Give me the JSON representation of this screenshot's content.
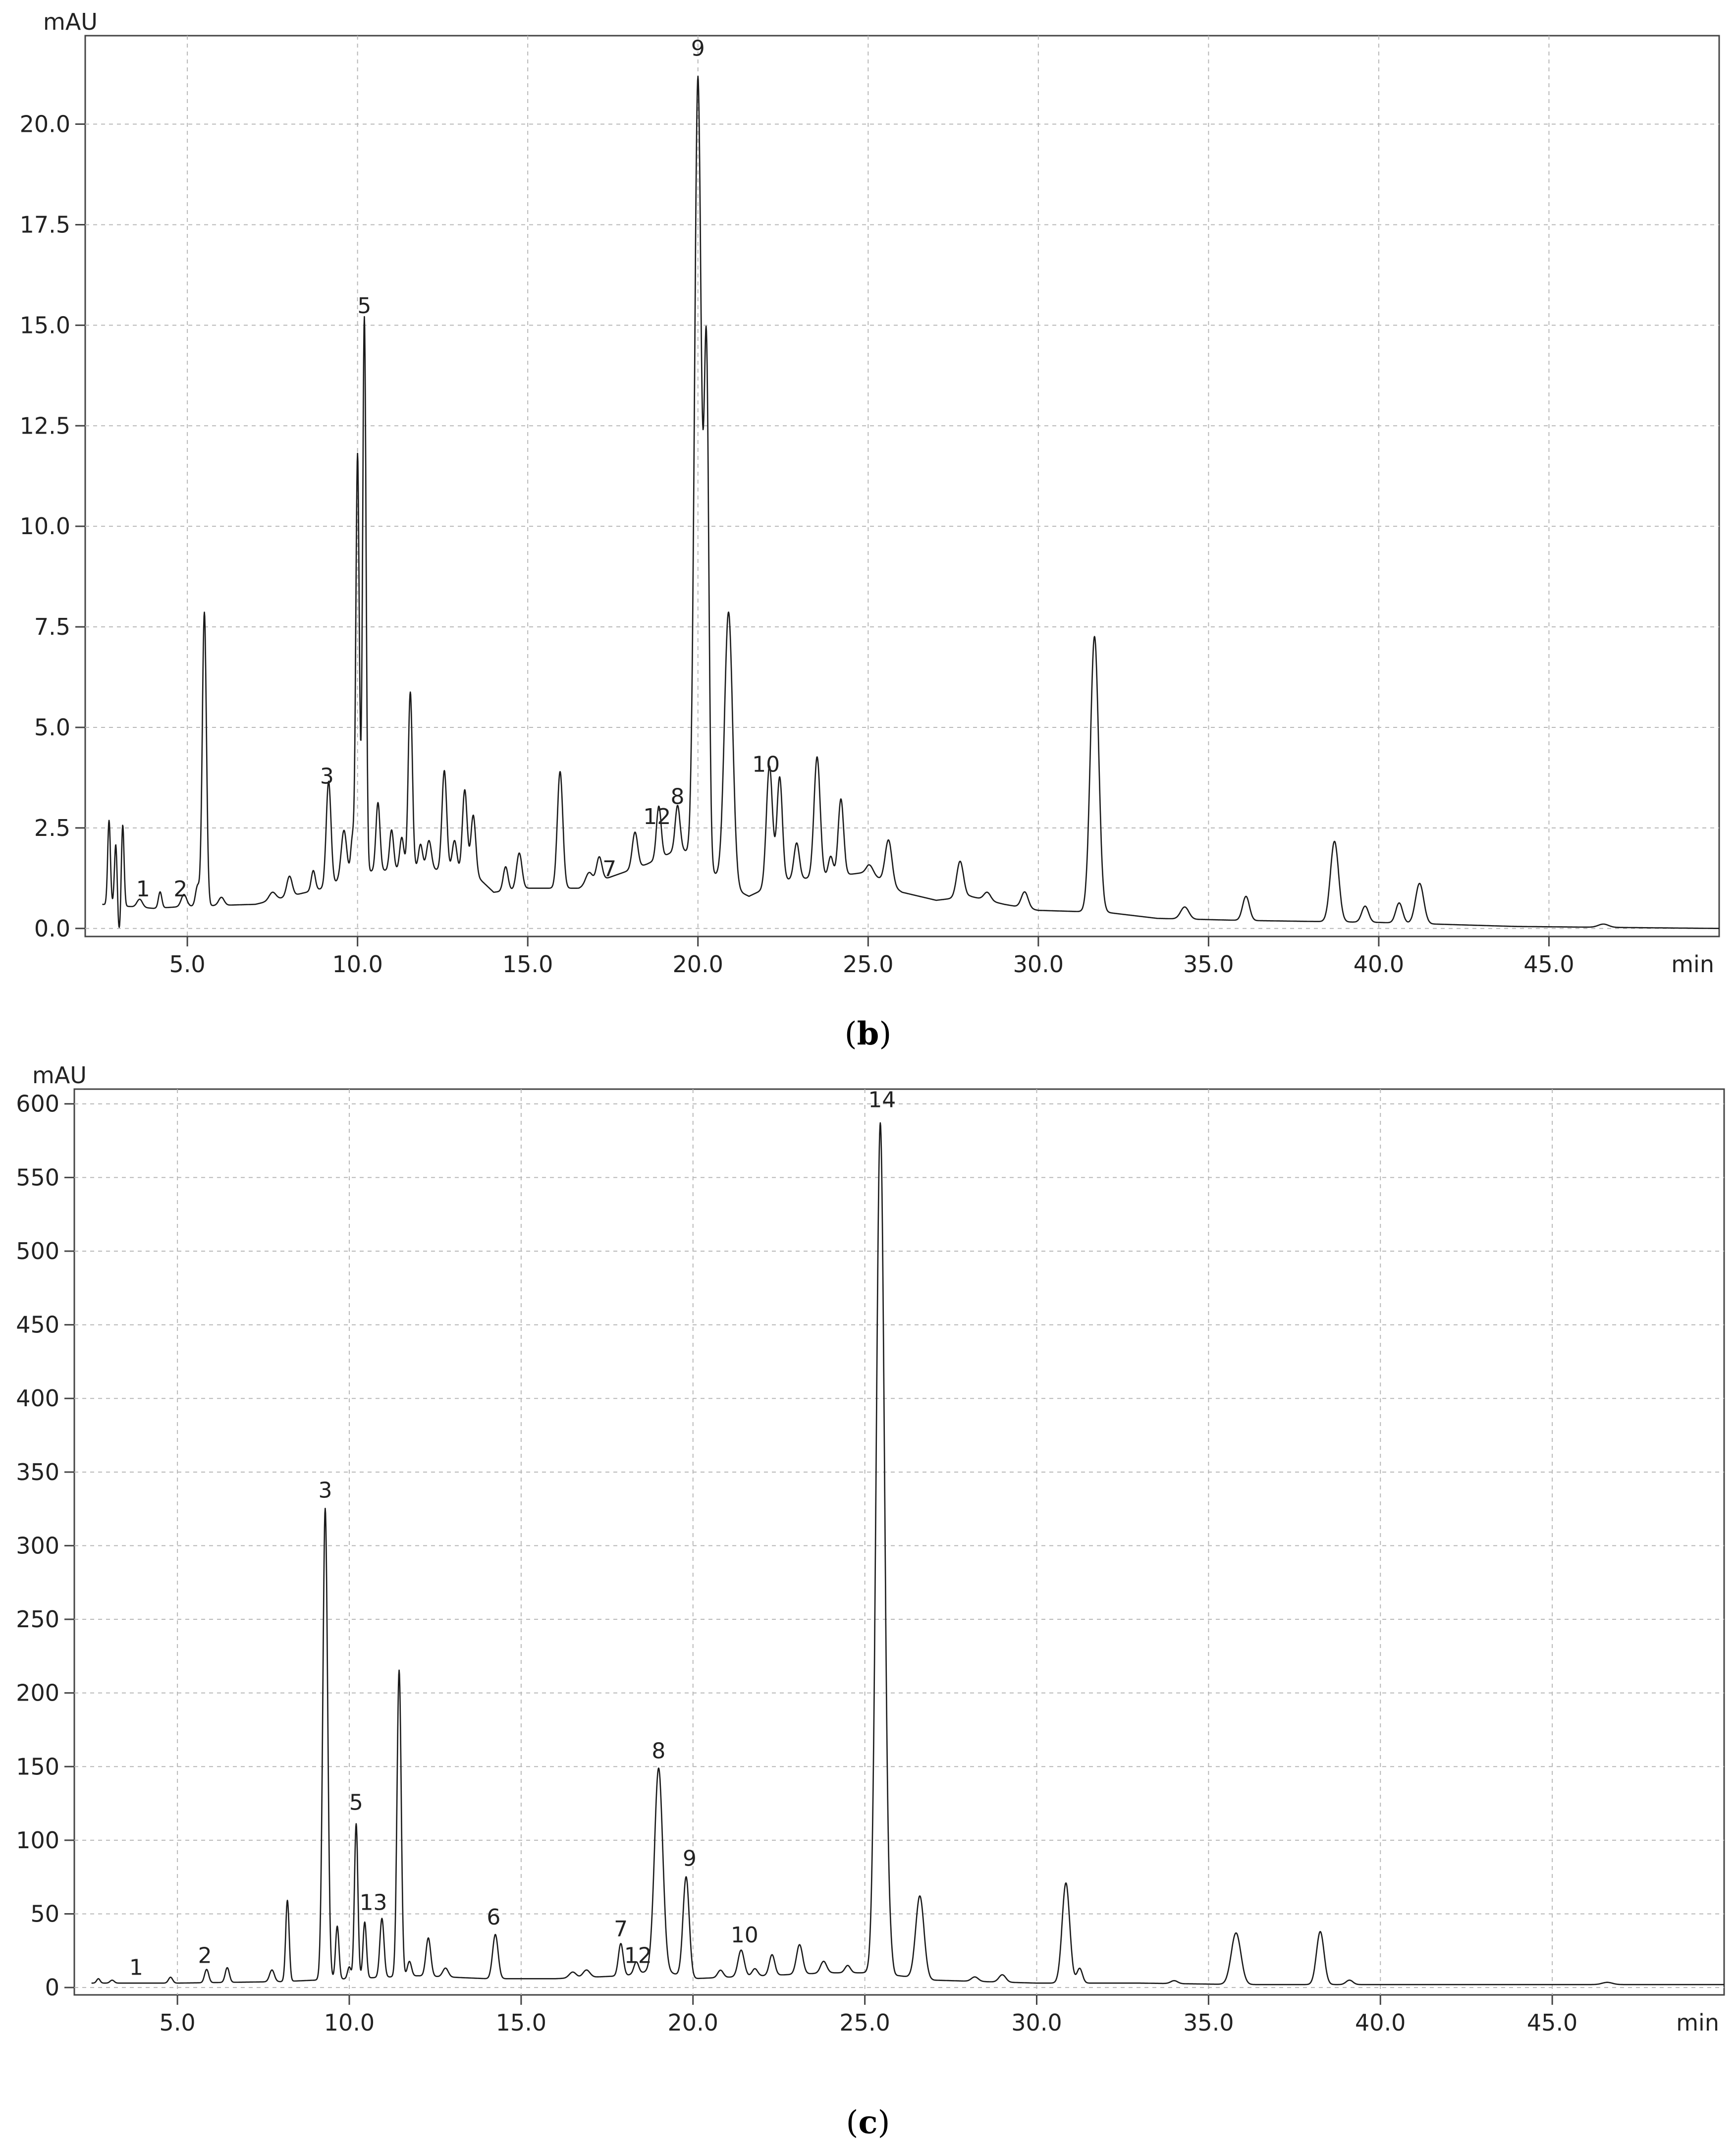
{
  "chart_data": [
    {
      "panel": "b",
      "type": "line",
      "caption": {
        "open": "(",
        "letter": "b",
        "close": ")"
      },
      "xlabel": "min",
      "ylabel": "mAU",
      "xlim": [
        2.0,
        50.0
      ],
      "ylim": [
        -0.2,
        22.2
      ],
      "xticks": [
        5,
        10,
        15,
        20,
        25,
        30,
        35,
        40,
        45
      ],
      "xtick_labels": [
        "5.0",
        "10.0",
        "15.0",
        "20.0",
        "25.0",
        "30.0",
        "35.0",
        "40.0",
        "45.0"
      ],
      "yticks": [
        0,
        2.5,
        5,
        7.5,
        10,
        12.5,
        15,
        17.5,
        20
      ],
      "ytick_labels": [
        "0.0",
        "2.5",
        "5.0",
        "7.5",
        "10.0",
        "12.5",
        "15.0",
        "17.5",
        "20.0"
      ],
      "grid": true,
      "baseline": [
        [
          2.5,
          0.6
        ],
        [
          4.0,
          0.5
        ],
        [
          5.0,
          0.55
        ],
        [
          7.0,
          0.6
        ],
        [
          9.0,
          1.0
        ],
        [
          10.0,
          1.4
        ],
        [
          12.0,
          1.5
        ],
        [
          13.5,
          1.3
        ],
        [
          14.0,
          0.9
        ],
        [
          15.0,
          1.0
        ],
        [
          16.5,
          1.0
        ],
        [
          17.5,
          1.3
        ],
        [
          18.5,
          1.6
        ],
        [
          19.5,
          2.0
        ],
        [
          21.0,
          1.0
        ],
        [
          21.5,
          0.8
        ],
        [
          22.5,
          1.2
        ],
        [
          24.0,
          1.3
        ],
        [
          25.0,
          1.4
        ],
        [
          26.0,
          0.9
        ],
        [
          27.0,
          0.7
        ],
        [
          28.0,
          0.8
        ],
        [
          29.0,
          0.6
        ],
        [
          30.0,
          0.45
        ],
        [
          32.0,
          0.4
        ],
        [
          33.5,
          0.25
        ],
        [
          36.0,
          0.2
        ],
        [
          40.0,
          0.15
        ],
        [
          42.0,
          0.1
        ],
        [
          44.0,
          0.05
        ],
        [
          50.0,
          0.0
        ]
      ],
      "peaks": [
        [
          2.7,
          2.1,
          0.04
        ],
        [
          2.9,
          1.6,
          0.04
        ],
        [
          3.1,
          2.1,
          0.04
        ],
        [
          3.6,
          0.2,
          0.08
        ],
        [
          4.2,
          0.4,
          0.05
        ],
        [
          4.9,
          0.3,
          0.08
        ],
        [
          5.3,
          0.5,
          0.06
        ],
        [
          5.5,
          7.3,
          0.06
        ],
        [
          6.0,
          0.2,
          0.08
        ],
        [
          7.5,
          0.2,
          0.1
        ],
        [
          8.0,
          0.5,
          0.08
        ],
        [
          8.7,
          0.5,
          0.06
        ],
        [
          9.15,
          2.6,
          0.07
        ],
        [
          9.6,
          1.2,
          0.08
        ],
        [
          9.85,
          0.9,
          0.05
        ],
        [
          10.0,
          10.4,
          0.05
        ],
        [
          10.2,
          13.8,
          0.05
        ],
        [
          10.6,
          1.7,
          0.06
        ],
        [
          11.0,
          1.0,
          0.06
        ],
        [
          11.3,
          0.8,
          0.06
        ],
        [
          11.55,
          4.4,
          0.06
        ],
        [
          11.85,
          0.6,
          0.06
        ],
        [
          12.1,
          0.7,
          0.07
        ],
        [
          12.55,
          2.5,
          0.07
        ],
        [
          12.85,
          0.8,
          0.07
        ],
        [
          13.15,
          2.1,
          0.07
        ],
        [
          13.4,
          1.5,
          0.07
        ],
        [
          14.35,
          0.6,
          0.07
        ],
        [
          14.75,
          0.9,
          0.08
        ],
        [
          15.95,
          2.9,
          0.08
        ],
        [
          16.8,
          0.3,
          0.1
        ],
        [
          17.1,
          0.6,
          0.08
        ],
        [
          18.15,
          0.9,
          0.08
        ],
        [
          18.85,
          1.3,
          0.07
        ],
        [
          19.4,
          1.1,
          0.07
        ],
        [
          20.0,
          19.5,
          0.1
        ],
        [
          20.25,
          12.5,
          0.07
        ],
        [
          20.9,
          6.8,
          0.12
        ],
        [
          22.1,
          3.0,
          0.09
        ],
        [
          22.4,
          2.6,
          0.08
        ],
        [
          22.9,
          0.9,
          0.08
        ],
        [
          23.5,
          3.0,
          0.09
        ],
        [
          23.9,
          0.5,
          0.07
        ],
        [
          24.2,
          1.9,
          0.08
        ],
        [
          25.05,
          0.2,
          0.1
        ],
        [
          25.6,
          1.1,
          0.1
        ],
        [
          27.7,
          0.9,
          0.1
        ],
        [
          28.5,
          0.2,
          0.1
        ],
        [
          29.6,
          0.4,
          0.1
        ],
        [
          31.65,
          6.85,
          0.12
        ],
        [
          34.3,
          0.3,
          0.12
        ],
        [
          36.1,
          0.6,
          0.1
        ],
        [
          38.7,
          2.0,
          0.12
        ],
        [
          39.6,
          0.4,
          0.1
        ],
        [
          40.6,
          0.5,
          0.1
        ],
        [
          41.2,
          1.0,
          0.12
        ],
        [
          46.6,
          0.08,
          0.15
        ]
      ],
      "dips": [
        [
          3.0,
          0.7,
          0.05
        ]
      ],
      "annotations": [
        {
          "label": "1",
          "x": 3.7,
          "y": 0.7
        },
        {
          "label": "2",
          "x": 4.8,
          "y": 0.7
        },
        {
          "label": "3",
          "x": 9.1,
          "y": 3.5
        },
        {
          "label": "5",
          "x": 10.2,
          "y": 15.2
        },
        {
          "label": "7",
          "x": 17.4,
          "y": 1.2
        },
        {
          "label": "12",
          "x": 18.8,
          "y": 2.5
        },
        {
          "label": "8",
          "x": 19.4,
          "y": 3.0
        },
        {
          "label": "9",
          "x": 20.0,
          "y": 21.6
        },
        {
          "label": "10",
          "x": 22.0,
          "y": 3.8
        }
      ]
    },
    {
      "panel": "c",
      "type": "line",
      "caption": {
        "open": "(",
        "letter": "c",
        "close": ")"
      },
      "xlabel": "min",
      "ylabel": "mAU",
      "xlim": [
        2.0,
        50.0
      ],
      "ylim": [
        -5,
        610
      ],
      "xticks": [
        5,
        10,
        15,
        20,
        25,
        30,
        35,
        40,
        45
      ],
      "xtick_labels": [
        "5.0",
        "10.0",
        "15.0",
        "20.0",
        "25.0",
        "30.0",
        "35.0",
        "40.0",
        "45.0"
      ],
      "yticks": [
        0,
        50,
        100,
        150,
        200,
        250,
        300,
        350,
        400,
        450,
        500,
        550,
        600
      ],
      "ytick_labels": [
        "0",
        "50",
        "100",
        "150",
        "200",
        "250",
        "300",
        "350",
        "400",
        "450",
        "500",
        "550",
        "600"
      ],
      "grid": true,
      "baseline": [
        [
          2.5,
          3
        ],
        [
          5.0,
          3
        ],
        [
          8.0,
          4
        ],
        [
          10.0,
          6
        ],
        [
          12.0,
          8
        ],
        [
          14.0,
          6
        ],
        [
          16.0,
          6
        ],
        [
          18.0,
          8
        ],
        [
          19.0,
          12
        ],
        [
          20.0,
          6
        ],
        [
          22.0,
          8
        ],
        [
          24.0,
          10
        ],
        [
          25.0,
          10
        ],
        [
          26.0,
          8
        ],
        [
          27.0,
          5
        ],
        [
          30.0,
          3
        ],
        [
          33.0,
          3
        ],
        [
          36.0,
          2
        ],
        [
          40.0,
          2
        ],
        [
          45.0,
          2
        ],
        [
          50.0,
          2
        ]
      ],
      "peaks": [
        [
          2.7,
          3,
          0.05
        ],
        [
          3.1,
          2,
          0.06
        ],
        [
          4.8,
          4,
          0.06
        ],
        [
          5.85,
          9,
          0.06
        ],
        [
          6.45,
          10,
          0.06
        ],
        [
          7.75,
          8,
          0.07
        ],
        [
          8.2,
          55,
          0.05
        ],
        [
          9.3,
          320,
          0.07
        ],
        [
          9.65,
          36,
          0.05
        ],
        [
          10.0,
          8,
          0.05
        ],
        [
          10.2,
          105,
          0.05
        ],
        [
          10.45,
          38,
          0.05
        ],
        [
          10.95,
          40,
          0.06
        ],
        [
          11.45,
          208,
          0.06
        ],
        [
          11.75,
          10,
          0.06
        ],
        [
          12.3,
          26,
          0.07
        ],
        [
          12.8,
          6,
          0.08
        ],
        [
          14.25,
          30,
          0.08
        ],
        [
          16.5,
          4,
          0.1
        ],
        [
          16.9,
          5,
          0.1
        ],
        [
          17.9,
          22,
          0.07
        ],
        [
          18.35,
          8,
          0.07
        ],
        [
          19.0,
          137,
          0.12
        ],
        [
          19.8,
          68,
          0.09
        ],
        [
          20.8,
          5,
          0.08
        ],
        [
          21.4,
          18,
          0.09
        ],
        [
          21.8,
          5,
          0.08
        ],
        [
          22.3,
          14,
          0.08
        ],
        [
          23.1,
          20,
          0.09
        ],
        [
          23.8,
          8,
          0.09
        ],
        [
          24.5,
          5,
          0.08
        ],
        [
          25.45,
          578,
          0.12
        ],
        [
          25.75,
          10,
          0.06
        ],
        [
          26.6,
          56,
          0.12
        ],
        [
          28.2,
          3,
          0.1
        ],
        [
          29.0,
          5,
          0.1
        ],
        [
          30.85,
          68,
          0.11
        ],
        [
          31.25,
          10,
          0.08
        ],
        [
          34.0,
          2,
          0.1
        ],
        [
          35.8,
          35,
          0.14
        ],
        [
          38.25,
          36,
          0.11
        ],
        [
          39.1,
          3,
          0.1
        ],
        [
          46.6,
          1.5,
          0.15
        ]
      ],
      "dips": [],
      "annotations": [
        {
          "label": "1",
          "x": 3.8,
          "y": 6
        },
        {
          "label": "2",
          "x": 5.8,
          "y": 14
        },
        {
          "label": "3",
          "x": 9.3,
          "y": 330
        },
        {
          "label": "5",
          "x": 10.2,
          "y": 118
        },
        {
          "label": "13",
          "x": 10.7,
          "y": 50
        },
        {
          "label": "6",
          "x": 14.2,
          "y": 40
        },
        {
          "label": "7",
          "x": 17.9,
          "y": 32
        },
        {
          "label": "12",
          "x": 18.4,
          "y": 14
        },
        {
          "label": "8",
          "x": 19.0,
          "y": 153
        },
        {
          "label": "9",
          "x": 19.9,
          "y": 80
        },
        {
          "label": "10",
          "x": 21.5,
          "y": 28
        },
        {
          "label": "14",
          "x": 25.5,
          "y": 595
        }
      ]
    }
  ]
}
